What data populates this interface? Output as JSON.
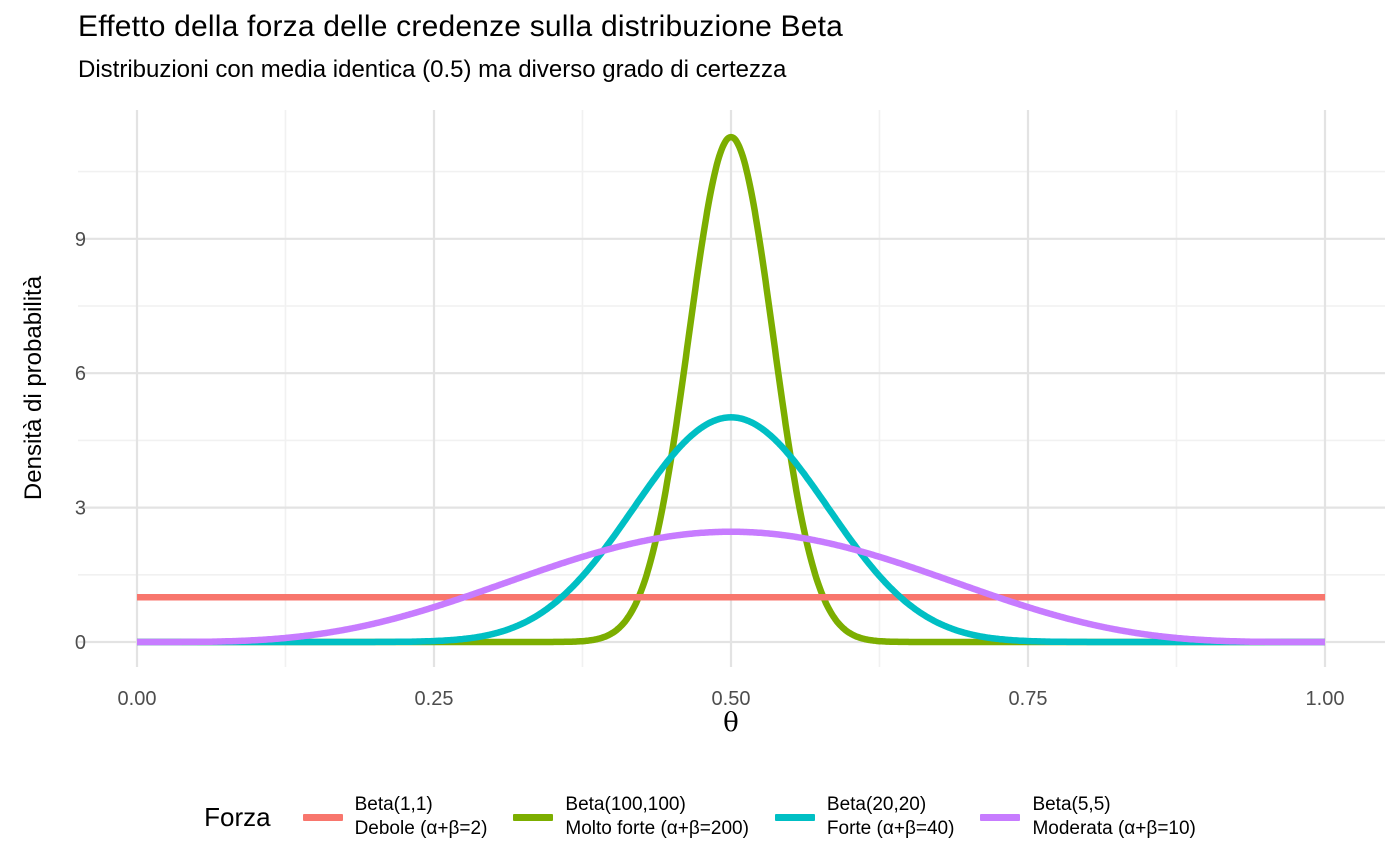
{
  "header": {
    "title": "Effetto della forza delle credenze sulla distribuzione Beta",
    "subtitle": "Distribuzioni con media identica (0.5) ma diverso grado di certezza"
  },
  "chart_data": {
    "type": "line",
    "title": "Effetto della forza delle credenze sulla distribuzione Beta",
    "subtitle": "Distribuzioni con media identica (0.5) ma diverso grado di certezza",
    "xlabel": "θ",
    "ylabel": "Densità di probabilità",
    "xlim": [
      0,
      1
    ],
    "ylim": [
      0,
      11.87
    ],
    "x_ticks": {
      "values": [
        0,
        0.25,
        0.5,
        0.75,
        1
      ],
      "labels": [
        "0.00",
        "0.25",
        "0.50",
        "0.75",
        "1.00"
      ]
    },
    "x_minor_ticks": [
      0.125,
      0.375,
      0.625,
      0.875
    ],
    "y_ticks": {
      "values": [
        0,
        3,
        6,
        9
      ],
      "labels": [
        "0",
        "3",
        "6",
        "9"
      ]
    },
    "y_minor_ticks": [
      1.5,
      4.5,
      7.5,
      10.5
    ],
    "grid": "major and minor gridlines, no axis lines or tick marks (ggplot theme_minimal)",
    "legend": {
      "title": "Forza",
      "position": "bottom"
    },
    "series": [
      {
        "name": "Beta(1,1)",
        "legend_label": [
          "Beta(1,1)",
          "Debole (α+β=2)"
        ],
        "alpha": 1,
        "beta": 1,
        "color": "#F8766D",
        "curve": "uniform flat line",
        "peak_density": 1.0,
        "draw_order": 2
      },
      {
        "name": "Beta(100,100)",
        "legend_label": [
          "Beta(100,100)",
          "Molto forte (α+β=200)"
        ],
        "alpha": 100,
        "beta": 100,
        "color": "#7CAE00",
        "curve": "very narrow bell centered at 0.5",
        "peak_density": 11.27,
        "draw_order": 1
      },
      {
        "name": "Beta(20,20)",
        "legend_label": [
          "Beta(20,20)",
          "Forte (α+β=40)"
        ],
        "alpha": 20,
        "beta": 20,
        "color": "#00BFC4",
        "curve": "narrow bell centered at 0.5",
        "peak_density": 5.05,
        "draw_order": 3
      },
      {
        "name": "Beta(5,5)",
        "legend_label": [
          "Beta(5,5)",
          "Moderata (α+β=10)"
        ],
        "alpha": 5,
        "beta": 5,
        "color": "#C77CFF",
        "curve": "wide bell centered at 0.5",
        "peak_density": 2.46,
        "draw_order": 4
      }
    ],
    "colors": {
      "background": "#FFFFFF",
      "grid_major": "#E3E3E3",
      "grid_minor": "#F1F1F1",
      "tick_label": "#4D4D4D",
      "text": "#000000"
    }
  }
}
